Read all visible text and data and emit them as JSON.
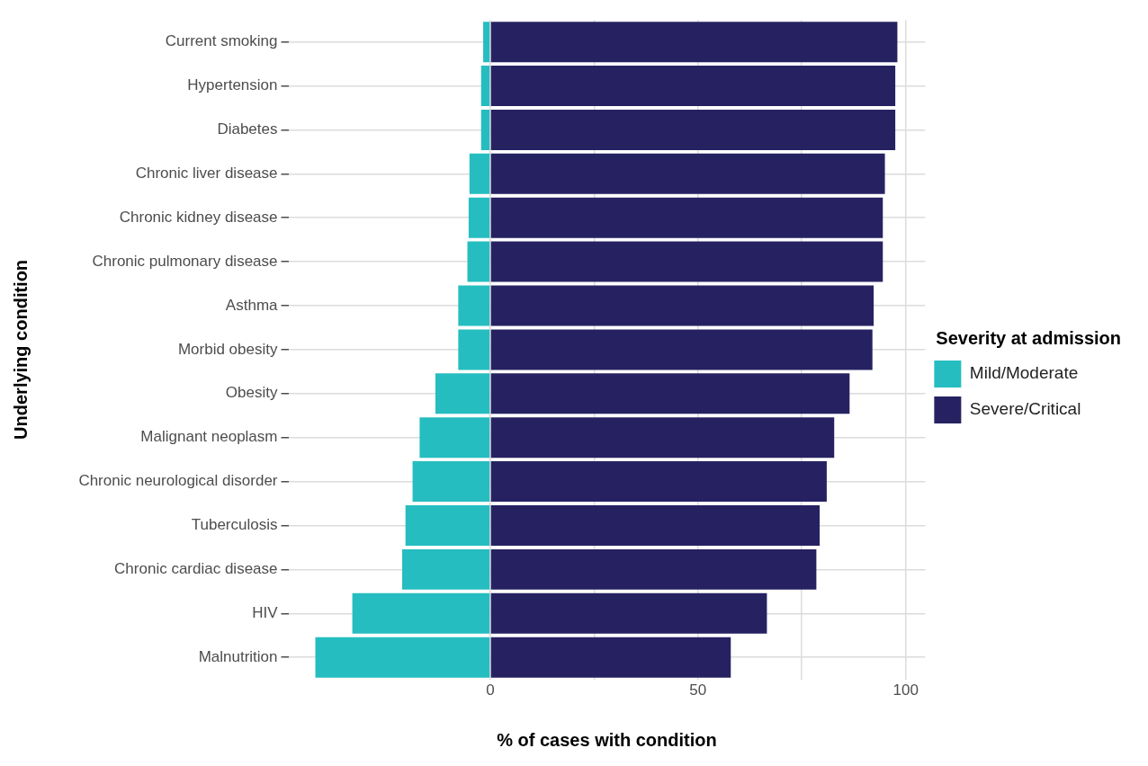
{
  "chart_data": {
    "type": "bar",
    "orientation": "horizontal",
    "stacked": true,
    "xlabel": "% of cases with condition",
    "ylabel": "Underlying condition",
    "legend_title": "Severity at admission",
    "categories": [
      "Current smoking",
      "Hypertension",
      "Diabetes",
      "Chronic liver disease",
      "Chronic kidney disease",
      "Chronic pulmonary disease",
      "Asthma",
      "Morbid obesity",
      "Obesity",
      "Malignant neoplasm",
      "Chronic neurological disorder",
      "Tuberculosis",
      "Chronic cardiac disease",
      "HIV",
      "Malnutrition"
    ],
    "series": [
      {
        "name": "Mild/Moderate",
        "color": "#25bdc0",
        "values": [
          -1.7,
          -2.2,
          -2.2,
          -5,
          -5.2,
          -5.5,
          -7.7,
          -7.7,
          -13.2,
          -17,
          -18.7,
          -20.4,
          -21.2,
          -33.2,
          -42.1
        ]
      },
      {
        "name": "Severe/Critical",
        "color": "#262262",
        "values": [
          98,
          97.5,
          97.5,
          95,
          94.5,
          94.5,
          92.3,
          92,
          86.5,
          82.8,
          81,
          79.3,
          78.5,
          66.6,
          57.9
        ]
      }
    ],
    "xlim": [
      -48.6,
      104.7
    ],
    "xticks": [
      0,
      {
        "value": 25,
        "label": null
      },
      50,
      {
        "value": 75,
        "label": null
      },
      100
    ],
    "grid": true,
    "legend": "right"
  }
}
